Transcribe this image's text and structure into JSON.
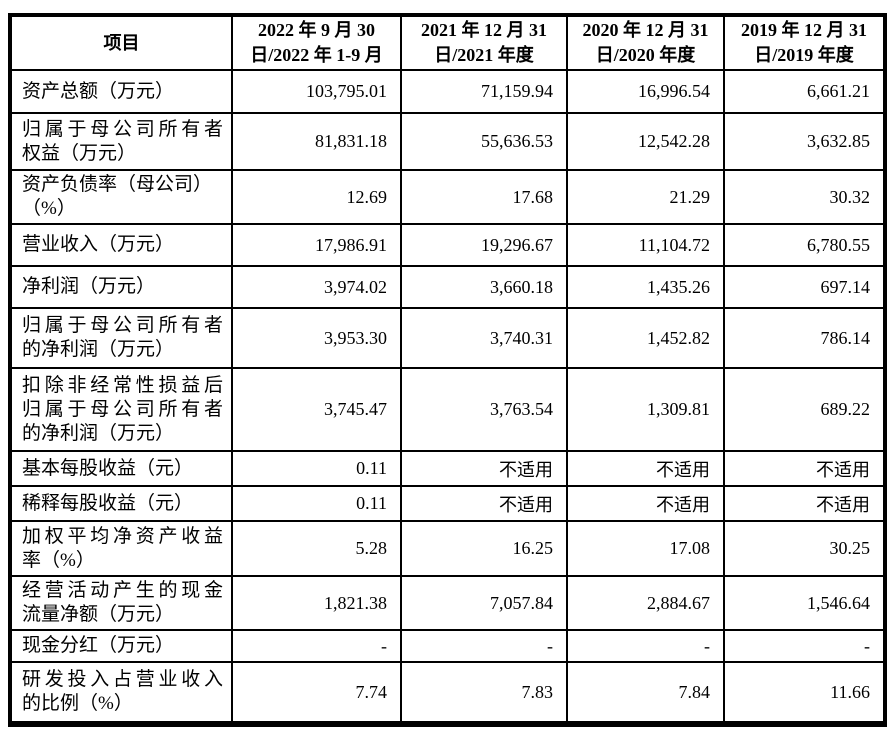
{
  "table": {
    "colors": {
      "border": "#000000",
      "text": "#000000",
      "background": "#ffffff"
    },
    "header": {
      "item_label": "项目",
      "periods": [
        {
          "line1": "2022 年 9 月 30",
          "line2": "日/2022 年 1-9 月"
        },
        {
          "line1": "2021 年 12 月 31",
          "line2": "日/2021 年度"
        },
        {
          "line1": "2020 年 12 月 31",
          "line2": "日/2020 年度"
        },
        {
          "line1": "2019 年 12 月 31",
          "line2": "日/2019 年度"
        }
      ]
    },
    "rows": [
      {
        "label_lines": [
          "资产总额（万元）"
        ],
        "values": [
          "103,795.01",
          "71,159.94",
          "16,996.54",
          "6,661.21"
        ]
      },
      {
        "label_lines": [
          "归属于母公司所有者",
          "权益（万元）"
        ],
        "values": [
          "81,831.18",
          "55,636.53",
          "12,542.28",
          "3,632.85"
        ]
      },
      {
        "label_lines": [
          "资产负债率（母公司）",
          "（%）"
        ],
        "values": [
          "12.69",
          "17.68",
          "21.29",
          "30.32"
        ]
      },
      {
        "label_lines": [
          "营业收入（万元）"
        ],
        "values": [
          "17,986.91",
          "19,296.67",
          "11,104.72",
          "6,780.55"
        ]
      },
      {
        "label_lines": [
          "净利润（万元）"
        ],
        "values": [
          "3,974.02",
          "3,660.18",
          "1,435.26",
          "697.14"
        ]
      },
      {
        "label_lines": [
          "归属于母公司所有者",
          "的净利润（万元）"
        ],
        "values": [
          "3,953.30",
          "3,740.31",
          "1,452.82",
          "786.14"
        ]
      },
      {
        "label_lines": [
          "扣除非经常性损益后",
          "归属于母公司所有者",
          "的净利润（万元）"
        ],
        "values": [
          "3,745.47",
          "3,763.54",
          "1,309.81",
          "689.22"
        ]
      },
      {
        "label_lines": [
          "基本每股收益（元）"
        ],
        "values": [
          "0.11",
          "不适用",
          "不适用",
          "不适用"
        ]
      },
      {
        "label_lines": [
          "稀释每股收益（元）"
        ],
        "values": [
          "0.11",
          "不适用",
          "不适用",
          "不适用"
        ]
      },
      {
        "label_lines": [
          "加权平均净资产收益",
          "率（%）"
        ],
        "values": [
          "5.28",
          "16.25",
          "17.08",
          "30.25"
        ]
      },
      {
        "label_lines": [
          "经营活动产生的现金",
          "流量净额（万元）"
        ],
        "values": [
          "1,821.38",
          "7,057.84",
          "2,884.67",
          "1,546.64"
        ]
      },
      {
        "label_lines": [
          "现金分红（万元）"
        ],
        "values": [
          "-",
          "-",
          "-",
          "-"
        ]
      },
      {
        "label_lines": [
          "研发投入占营业收入",
          "的比例（%）"
        ],
        "values": [
          "7.74",
          "7.83",
          "7.84",
          "11.66"
        ]
      }
    ]
  }
}
